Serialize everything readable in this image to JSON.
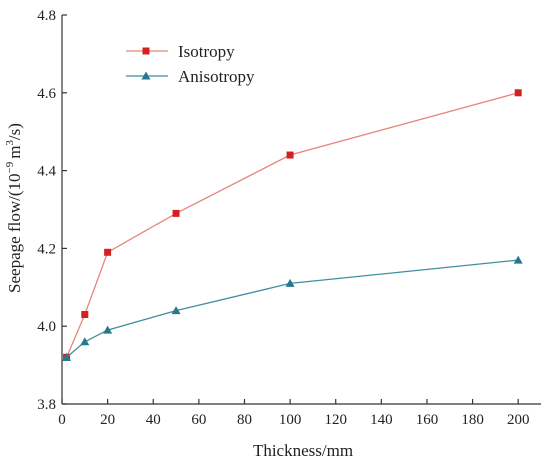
{
  "chart_data": {
    "type": "line",
    "xlabel": "Thickness/mm",
    "ylabel_parts": {
      "prefix": "Seepage flow/(10",
      "exp1": "−9",
      "mid": "m",
      "exp2": "3",
      "suffix": "/s)"
    },
    "xlim": [
      0,
      210
    ],
    "ylim": [
      3.8,
      4.8
    ],
    "xticks": [
      0,
      20,
      40,
      60,
      80,
      100,
      120,
      140,
      160,
      180,
      200
    ],
    "xtick_labels": [
      "0",
      "20",
      "40",
      "60",
      "80",
      "100",
      "120",
      "140",
      "160",
      "180",
      "200"
    ],
    "yticks": [
      3.8,
      4.0,
      4.2,
      4.4,
      4.6,
      4.8
    ],
    "ytick_labels": [
      "3.8",
      "4.0",
      "4.2",
      "4.4",
      "4.6",
      "4.8"
    ],
    "grid": false,
    "legend_position": "top-left",
    "series": [
      {
        "name": "Isotropy",
        "color": "#e8847c",
        "marker": "square",
        "marker_color": "#d42020",
        "points": [
          [
            2,
            3.92
          ],
          [
            10,
            4.03
          ],
          [
            20,
            4.19
          ],
          [
            50,
            4.29
          ],
          [
            100,
            4.44
          ],
          [
            200,
            4.6
          ]
        ]
      },
      {
        "name": "Anisotropy",
        "color": "#3f8ea1",
        "marker": "triangle",
        "marker_color": "#247a8c",
        "points": [
          [
            2,
            3.92
          ],
          [
            10,
            3.96
          ],
          [
            20,
            3.99
          ],
          [
            50,
            4.04
          ],
          [
            100,
            4.11
          ],
          [
            200,
            4.17
          ]
        ]
      }
    ]
  }
}
